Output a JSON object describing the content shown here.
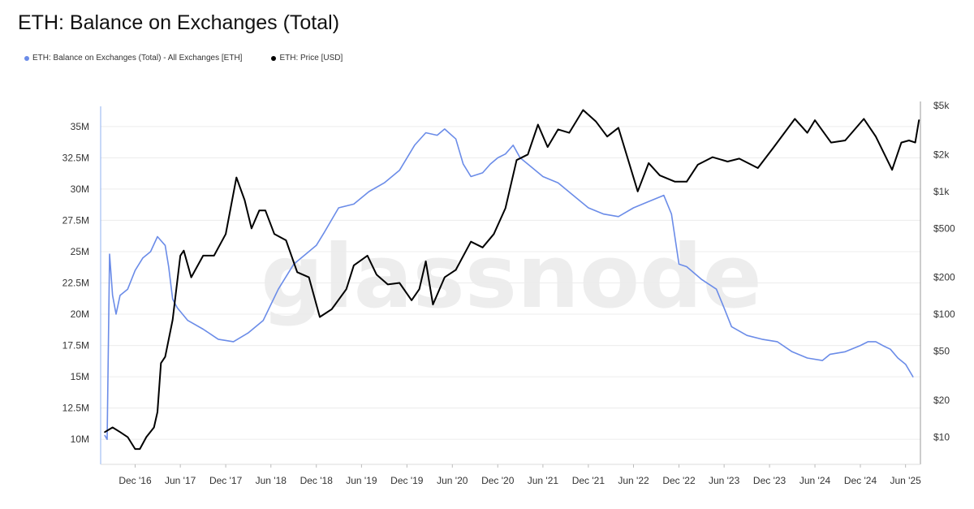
{
  "title": "ETH: Balance on Exchanges (Total)",
  "watermark": "glassnode",
  "legend": [
    {
      "label": "ETH: Balance on Exchanges (Total) - All Exchanges [ETH]",
      "color": "#6b8ce8"
    },
    {
      "label": "ETH: Price [USD]",
      "color": "#000000"
    }
  ],
  "chart_data": {
    "type": "line",
    "title": "ETH: Balance on Exchanges (Total)",
    "x_tick_labels": [
      "Dec '16",
      "Jun '17",
      "Dec '17",
      "Jun '18",
      "Dec '18",
      "Jun '19",
      "Dec '19",
      "Jun '20",
      "Dec '20",
      "Jun '21",
      "Dec '21",
      "Jun '22",
      "Dec '22",
      "Jun '23",
      "Dec '23",
      "Jun '24",
      "Dec '24",
      "Jun '25"
    ],
    "x_tick_dates": [
      "2016-12-01",
      "2017-06-01",
      "2017-12-01",
      "2018-06-01",
      "2018-12-01",
      "2019-06-01",
      "2019-12-01",
      "2020-06-01",
      "2020-12-01",
      "2021-06-01",
      "2021-12-01",
      "2022-06-01",
      "2022-12-01",
      "2023-06-01",
      "2023-12-01",
      "2024-06-01",
      "2024-12-01",
      "2025-06-01"
    ],
    "y_left": {
      "ticks": [
        10,
        12.5,
        15,
        17.5,
        20,
        22.5,
        25,
        27.5,
        30,
        32.5,
        35
      ],
      "tick_labels": [
        "10M",
        "12.5M",
        "15M",
        "17.5M",
        "20M",
        "22.5M",
        "25M",
        "27.5M",
        "30M",
        "32.5M",
        "35M"
      ],
      "range": [
        8.0,
        37.0
      ],
      "unit": "M ETH"
    },
    "y_right": {
      "scale": "log",
      "ticks": [
        10,
        20,
        50,
        100,
        200,
        500,
        1000,
        2000,
        5000
      ],
      "tick_labels": [
        "$10",
        "$20",
        "$50",
        "$100",
        "$200",
        "$500",
        "$1k",
        "$2k",
        "$5k"
      ],
      "range": [
        6,
        5400
      ]
    },
    "grid": "horizontal",
    "legend_position": "top-left",
    "series": [
      {
        "name": "ETH: Balance on Exchanges (Total) - All Exchanges [ETH]",
        "color": "#6b8ce8",
        "axis": "left",
        "x": [
          "2016-08-01",
          "2016-08-10",
          "2016-08-20",
          "2016-09-01",
          "2016-09-15",
          "2016-10-01",
          "2016-11-01",
          "2016-12-01",
          "2017-01-01",
          "2017-02-01",
          "2017-03-01",
          "2017-04-01",
          "2017-04-15",
          "2017-05-01",
          "2017-05-20",
          "2017-06-10",
          "2017-07-01",
          "2017-09-01",
          "2017-11-01",
          "2018-01-01",
          "2018-03-01",
          "2018-05-01",
          "2018-07-01",
          "2018-09-01",
          "2018-10-01",
          "2018-12-01",
          "2019-01-01",
          "2019-03-01",
          "2019-05-01",
          "2019-07-01",
          "2019-09-01",
          "2019-11-01",
          "2020-01-01",
          "2020-02-15",
          "2020-04-01",
          "2020-05-01",
          "2020-06-15",
          "2020-07-15",
          "2020-08-15",
          "2020-10-01",
          "2020-11-01",
          "2020-12-01",
          "2021-01-01",
          "2021-02-01",
          "2021-03-01",
          "2021-04-01",
          "2021-06-01",
          "2021-08-01",
          "2021-10-01",
          "2021-12-01",
          "2022-02-01",
          "2022-04-01",
          "2022-06-01",
          "2022-08-01",
          "2022-10-01",
          "2022-11-01",
          "2022-12-01",
          "2023-01-01",
          "2023-03-01",
          "2023-05-01",
          "2023-06-01",
          "2023-07-01",
          "2023-09-01",
          "2023-11-01",
          "2024-01-01",
          "2024-03-01",
          "2024-05-01",
          "2024-07-01",
          "2024-08-01",
          "2024-10-01",
          "2024-12-01",
          "2025-01-01",
          "2025-02-01",
          "2025-03-01",
          "2025-04-01",
          "2025-05-01",
          "2025-06-01",
          "2025-07-01"
        ],
        "values": [
          10.3,
          10.0,
          24.8,
          21.5,
          20.0,
          21.5,
          22.0,
          23.5,
          24.5,
          25.0,
          26.2,
          25.5,
          23.8,
          21.2,
          20.5,
          20.0,
          19.5,
          18.8,
          18.0,
          17.8,
          18.5,
          19.5,
          22.0,
          24.0,
          24.5,
          25.5,
          26.5,
          28.5,
          28.8,
          29.8,
          30.5,
          31.5,
          33.5,
          34.5,
          34.3,
          34.8,
          34.0,
          32.0,
          31.0,
          31.3,
          32.0,
          32.5,
          32.8,
          33.5,
          32.5,
          32.0,
          31.0,
          30.5,
          29.5,
          28.5,
          28.0,
          27.8,
          28.5,
          29.0,
          29.5,
          28.0,
          24.0,
          23.8,
          22.8,
          22.0,
          20.5,
          19.0,
          18.3,
          18.0,
          17.8,
          17.0,
          16.5,
          16.3,
          16.8,
          17.0,
          17.5,
          17.8,
          17.8,
          17.5,
          17.2,
          16.5,
          16.0,
          15.0
        ]
      },
      {
        "name": "ETH: Price [USD]",
        "color": "#000000",
        "axis": "right",
        "x": [
          "2016-08-01",
          "2016-09-01",
          "2016-10-01",
          "2016-11-01",
          "2016-12-01",
          "2016-12-20",
          "2017-01-15",
          "2017-02-15",
          "2017-03-01",
          "2017-03-15",
          "2017-04-01",
          "2017-05-01",
          "2017-06-01",
          "2017-06-15",
          "2017-07-15",
          "2017-09-01",
          "2017-10-15",
          "2017-12-01",
          "2018-01-13",
          "2018-02-15",
          "2018-03-15",
          "2018-04-15",
          "2018-05-10",
          "2018-06-15",
          "2018-08-01",
          "2018-09-15",
          "2018-11-01",
          "2018-12-15",
          "2019-02-01",
          "2019-04-01",
          "2019-05-01",
          "2019-06-25",
          "2019-08-01",
          "2019-09-15",
          "2019-11-01",
          "2019-12-20",
          "2020-01-20",
          "2020-02-15",
          "2020-03-15",
          "2020-05-01",
          "2020-06-15",
          "2020-08-15",
          "2020-10-01",
          "2020-11-15",
          "2021-01-01",
          "2021-02-15",
          "2021-04-01",
          "2021-05-12",
          "2021-06-20",
          "2021-08-01",
          "2021-09-15",
          "2021-11-10",
          "2022-01-01",
          "2022-02-15",
          "2022-04-01",
          "2022-06-18",
          "2022-08-01",
          "2022-09-15",
          "2022-11-15",
          "2023-01-01",
          "2023-02-15",
          "2023-04-15",
          "2023-06-15",
          "2023-08-01",
          "2023-10-15",
          "2023-12-15",
          "2024-03-12",
          "2024-05-01",
          "2024-06-01",
          "2024-08-05",
          "2024-10-01",
          "2024-12-15",
          "2025-02-01",
          "2025-04-08",
          "2025-05-15",
          "2025-06-15",
          "2025-07-10",
          "2025-07-25"
        ],
        "values": [
          11,
          12,
          11,
          10,
          8,
          8,
          10,
          12,
          16,
          40,
          45,
          90,
          300,
          330,
          200,
          300,
          300,
          450,
          1300,
          850,
          500,
          700,
          700,
          450,
          400,
          220,
          200,
          95,
          110,
          160,
          250,
          300,
          210,
          175,
          180,
          130,
          160,
          270,
          120,
          200,
          230,
          390,
          350,
          450,
          730,
          1800,
          2000,
          3500,
          2300,
          3200,
          3000,
          4600,
          3700,
          2800,
          3300,
          1000,
          1700,
          1350,
          1200,
          1200,
          1650,
          1900,
          1750,
          1850,
          1550,
          2250,
          3900,
          3000,
          3800,
          2500,
          2600,
          3900,
          2800,
          1500,
          2500,
          2600,
          2500,
          3800
        ]
      }
    ]
  }
}
